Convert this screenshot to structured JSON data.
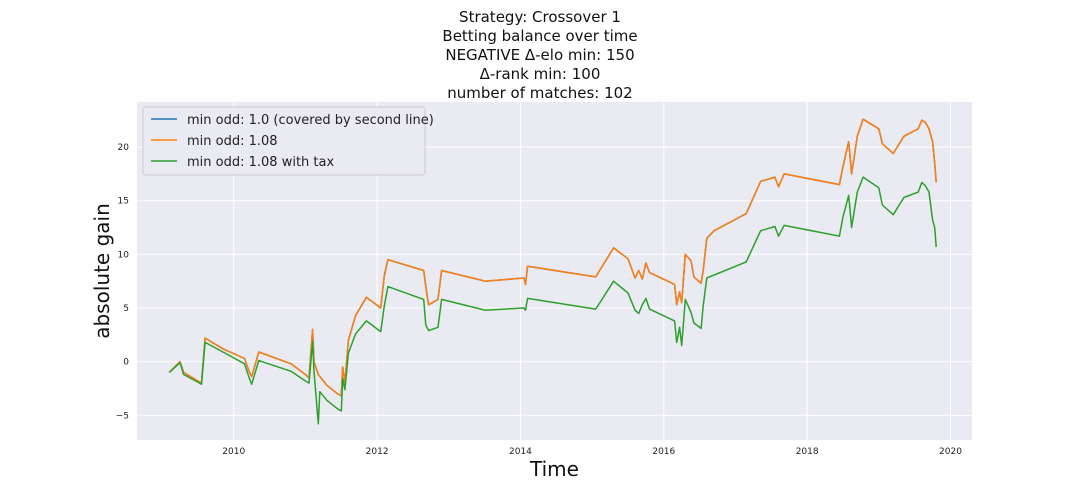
{
  "chart_data": {
    "type": "line",
    "title_lines": [
      "Strategy: Crossover 1",
      "Betting balance over time",
      "NEGATIVE Δ-elo min: 150",
      "Δ-rank min: 100",
      "number of matches: 102"
    ],
    "xlabel": "Time",
    "ylabel": "absolute gain",
    "xlim": [
      2008.65,
      2020.3
    ],
    "ylim": [
      -7.3,
      24.2
    ],
    "x_ticks": [
      2010,
      2012,
      2014,
      2016,
      2018,
      2020
    ],
    "y_ticks": [
      -5,
      0,
      5,
      10,
      15,
      20
    ],
    "grid": true,
    "legend_position": "upper-left",
    "series": [
      {
        "name": "min odd: 1.0 (covered by second line)",
        "color": "#1f77b4",
        "points": [
          [
            2009.1,
            -1.0
          ],
          [
            2009.25,
            0.0
          ],
          [
            2009.3,
            -1.0
          ],
          [
            2009.5,
            -1.8
          ],
          [
            2009.55,
            -2.0
          ],
          [
            2009.6,
            2.2
          ],
          [
            2009.85,
            1.2
          ],
          [
            2010.15,
            0.3
          ],
          [
            2010.22,
            -1.0
          ],
          [
            2010.25,
            -1.4
          ],
          [
            2010.35,
            0.9
          ],
          [
            2010.8,
            -0.2
          ],
          [
            2011.0,
            -1.2
          ],
          [
            2011.05,
            -1.5
          ],
          [
            2011.1,
            3.0
          ],
          [
            2011.12,
            0.0
          ],
          [
            2011.18,
            -1.2
          ],
          [
            2011.3,
            -2.2
          ],
          [
            2011.45,
            -3.0
          ],
          [
            2011.5,
            -3.2
          ],
          [
            2011.52,
            -0.5
          ],
          [
            2011.55,
            -2.0
          ],
          [
            2011.6,
            2.0
          ],
          [
            2011.7,
            4.3
          ],
          [
            2011.85,
            6.0
          ],
          [
            2012.05,
            5.0
          ],
          [
            2012.1,
            8.0
          ],
          [
            2012.15,
            9.5
          ],
          [
            2012.65,
            8.5
          ],
          [
            2012.7,
            6.0
          ],
          [
            2012.72,
            5.3
          ],
          [
            2012.85,
            5.8
          ],
          [
            2012.9,
            8.5
          ],
          [
            2013.45,
            7.6
          ],
          [
            2013.5,
            7.5
          ],
          [
            2014.05,
            7.8
          ],
          [
            2014.07,
            7.2
          ],
          [
            2014.1,
            8.9
          ],
          [
            2015.05,
            7.9
          ],
          [
            2015.3,
            10.6
          ],
          [
            2015.5,
            9.6
          ],
          [
            2015.6,
            7.8
          ],
          [
            2015.65,
            8.5
          ],
          [
            2015.7,
            7.7
          ],
          [
            2015.75,
            9.2
          ],
          [
            2015.8,
            8.3
          ],
          [
            2016.15,
            7.2
          ],
          [
            2016.18,
            5.3
          ],
          [
            2016.22,
            6.5
          ],
          [
            2016.25,
            5.5
          ],
          [
            2016.3,
            10.0
          ],
          [
            2016.38,
            9.4
          ],
          [
            2016.42,
            7.9
          ],
          [
            2016.52,
            7.3
          ],
          [
            2016.55,
            8.5
          ],
          [
            2016.6,
            11.5
          ],
          [
            2016.7,
            12.2
          ],
          [
            2017.15,
            13.8
          ],
          [
            2017.35,
            16.8
          ],
          [
            2017.55,
            17.2
          ],
          [
            2017.6,
            16.3
          ],
          [
            2017.68,
            17.5
          ],
          [
            2018.45,
            16.5
          ],
          [
            2018.5,
            18.2
          ],
          [
            2018.58,
            20.5
          ],
          [
            2018.6,
            19.0
          ],
          [
            2018.62,
            17.5
          ],
          [
            2018.7,
            21.0
          ],
          [
            2018.78,
            22.6
          ],
          [
            2019.0,
            21.7
          ],
          [
            2019.05,
            20.3
          ],
          [
            2019.2,
            19.4
          ],
          [
            2019.35,
            21.0
          ],
          [
            2019.55,
            21.7
          ],
          [
            2019.6,
            22.5
          ],
          [
            2019.65,
            22.3
          ],
          [
            2019.7,
            21.7
          ],
          [
            2019.75,
            20.5
          ],
          [
            2019.78,
            18.5
          ],
          [
            2019.8,
            16.7
          ]
        ]
      },
      {
        "name": "min odd: 1.08",
        "color": "#ff7f0e",
        "points": [
          [
            2009.1,
            -1.0
          ],
          [
            2009.25,
            0.0
          ],
          [
            2009.3,
            -1.0
          ],
          [
            2009.5,
            -1.8
          ],
          [
            2009.55,
            -2.0
          ],
          [
            2009.6,
            2.2
          ],
          [
            2009.85,
            1.2
          ],
          [
            2010.15,
            0.3
          ],
          [
            2010.22,
            -1.0
          ],
          [
            2010.25,
            -1.4
          ],
          [
            2010.35,
            0.9
          ],
          [
            2010.8,
            -0.2
          ],
          [
            2011.0,
            -1.2
          ],
          [
            2011.05,
            -1.5
          ],
          [
            2011.1,
            3.0
          ],
          [
            2011.12,
            0.0
          ],
          [
            2011.18,
            -1.2
          ],
          [
            2011.3,
            -2.2
          ],
          [
            2011.45,
            -3.0
          ],
          [
            2011.5,
            -3.2
          ],
          [
            2011.52,
            -0.5
          ],
          [
            2011.55,
            -2.0
          ],
          [
            2011.6,
            2.0
          ],
          [
            2011.7,
            4.3
          ],
          [
            2011.85,
            6.0
          ],
          [
            2012.05,
            5.0
          ],
          [
            2012.1,
            8.0
          ],
          [
            2012.15,
            9.5
          ],
          [
            2012.65,
            8.5
          ],
          [
            2012.7,
            6.0
          ],
          [
            2012.72,
            5.3
          ],
          [
            2012.85,
            5.8
          ],
          [
            2012.9,
            8.5
          ],
          [
            2013.45,
            7.6
          ],
          [
            2013.5,
            7.5
          ],
          [
            2014.05,
            7.8
          ],
          [
            2014.07,
            7.2
          ],
          [
            2014.1,
            8.9
          ],
          [
            2015.05,
            7.9
          ],
          [
            2015.3,
            10.6
          ],
          [
            2015.5,
            9.6
          ],
          [
            2015.6,
            7.8
          ],
          [
            2015.65,
            8.5
          ],
          [
            2015.7,
            7.7
          ],
          [
            2015.75,
            9.2
          ],
          [
            2015.8,
            8.3
          ],
          [
            2016.15,
            7.2
          ],
          [
            2016.18,
            5.3
          ],
          [
            2016.22,
            6.5
          ],
          [
            2016.25,
            5.5
          ],
          [
            2016.3,
            10.0
          ],
          [
            2016.38,
            9.4
          ],
          [
            2016.42,
            7.9
          ],
          [
            2016.52,
            7.3
          ],
          [
            2016.55,
            8.5
          ],
          [
            2016.6,
            11.5
          ],
          [
            2016.7,
            12.2
          ],
          [
            2017.15,
            13.8
          ],
          [
            2017.35,
            16.8
          ],
          [
            2017.55,
            17.2
          ],
          [
            2017.6,
            16.3
          ],
          [
            2017.68,
            17.5
          ],
          [
            2018.45,
            16.5
          ],
          [
            2018.5,
            18.2
          ],
          [
            2018.58,
            20.5
          ],
          [
            2018.6,
            19.0
          ],
          [
            2018.62,
            17.5
          ],
          [
            2018.7,
            21.0
          ],
          [
            2018.78,
            22.6
          ],
          [
            2019.0,
            21.7
          ],
          [
            2019.05,
            20.3
          ],
          [
            2019.2,
            19.4
          ],
          [
            2019.35,
            21.0
          ],
          [
            2019.55,
            21.7
          ],
          [
            2019.6,
            22.5
          ],
          [
            2019.65,
            22.3
          ],
          [
            2019.7,
            21.7
          ],
          [
            2019.75,
            20.5
          ],
          [
            2019.78,
            18.5
          ],
          [
            2019.8,
            16.7
          ]
        ]
      },
      {
        "name": "min odd: 1.08 with tax",
        "color": "#2ca02c",
        "points": [
          [
            2009.1,
            -1.0
          ],
          [
            2009.25,
            -0.1
          ],
          [
            2009.3,
            -1.2
          ],
          [
            2009.5,
            -1.9
          ],
          [
            2009.55,
            -2.1
          ],
          [
            2009.6,
            1.8
          ],
          [
            2009.85,
            0.9
          ],
          [
            2010.15,
            -0.2
          ],
          [
            2010.22,
            -1.6
          ],
          [
            2010.25,
            -2.1
          ],
          [
            2010.35,
            0.1
          ],
          [
            2010.8,
            -0.9
          ],
          [
            2011.0,
            -1.8
          ],
          [
            2011.05,
            -2.0
          ],
          [
            2011.1,
            1.9
          ],
          [
            2011.12,
            -0.9
          ],
          [
            2011.18,
            -5.8
          ],
          [
            2011.2,
            -2.8
          ],
          [
            2011.3,
            -3.6
          ],
          [
            2011.45,
            -4.4
          ],
          [
            2011.5,
            -4.6
          ],
          [
            2011.52,
            -1.6
          ],
          [
            2011.55,
            -2.6
          ],
          [
            2011.6,
            0.8
          ],
          [
            2011.7,
            2.6
          ],
          [
            2011.85,
            3.8
          ],
          [
            2012.05,
            2.8
          ],
          [
            2012.1,
            5.2
          ],
          [
            2012.15,
            7.0
          ],
          [
            2012.65,
            5.8
          ],
          [
            2012.68,
            3.4
          ],
          [
            2012.72,
            2.9
          ],
          [
            2012.85,
            3.2
          ],
          [
            2012.9,
            5.8
          ],
          [
            2013.45,
            4.9
          ],
          [
            2013.5,
            4.8
          ],
          [
            2014.05,
            5.0
          ],
          [
            2014.07,
            4.8
          ],
          [
            2014.1,
            5.9
          ],
          [
            2015.05,
            4.9
          ],
          [
            2015.3,
            7.5
          ],
          [
            2015.5,
            6.4
          ],
          [
            2015.6,
            4.8
          ],
          [
            2015.65,
            4.5
          ],
          [
            2015.7,
            5.3
          ],
          [
            2015.75,
            5.9
          ],
          [
            2015.8,
            4.9
          ],
          [
            2016.15,
            3.8
          ],
          [
            2016.18,
            1.8
          ],
          [
            2016.22,
            3.2
          ],
          [
            2016.25,
            1.5
          ],
          [
            2016.3,
            5.8
          ],
          [
            2016.38,
            4.6
          ],
          [
            2016.42,
            3.6
          ],
          [
            2016.52,
            3.1
          ],
          [
            2016.55,
            5.2
          ],
          [
            2016.6,
            7.8
          ],
          [
            2017.15,
            9.3
          ],
          [
            2017.35,
            12.2
          ],
          [
            2017.55,
            12.6
          ],
          [
            2017.6,
            11.7
          ],
          [
            2017.68,
            12.7
          ],
          [
            2018.45,
            11.7
          ],
          [
            2018.5,
            13.5
          ],
          [
            2018.58,
            15.5
          ],
          [
            2018.6,
            14.0
          ],
          [
            2018.62,
            12.5
          ],
          [
            2018.7,
            15.8
          ],
          [
            2018.78,
            17.2
          ],
          [
            2019.0,
            16.2
          ],
          [
            2019.05,
            14.6
          ],
          [
            2019.2,
            13.7
          ],
          [
            2019.35,
            15.3
          ],
          [
            2019.55,
            15.8
          ],
          [
            2019.6,
            16.7
          ],
          [
            2019.65,
            16.4
          ],
          [
            2019.7,
            15.8
          ],
          [
            2019.75,
            13.2
          ],
          [
            2019.78,
            12.5
          ],
          [
            2019.8,
            10.7
          ]
        ]
      }
    ]
  }
}
